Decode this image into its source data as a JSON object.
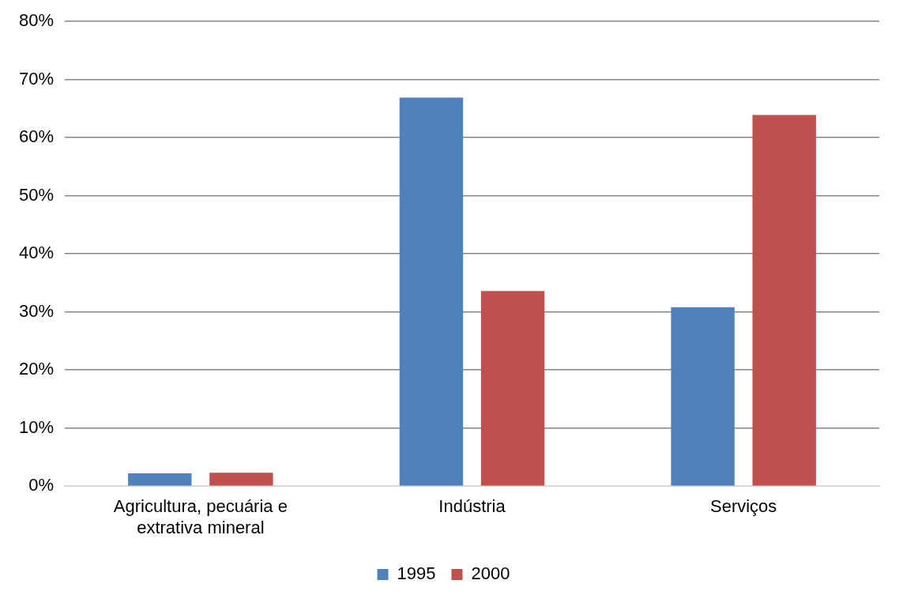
{
  "chart_data": {
    "type": "bar",
    "categories": [
      "Agricultura, pecuária e extrativa mineral",
      "Indústria",
      "Serviços"
    ],
    "series": [
      {
        "name": "1995",
        "color": "#4f81bd",
        "values": [
          2.2,
          66.9,
          30.8
        ]
      },
      {
        "name": "2000",
        "color": "#c0504d",
        "values": [
          2.3,
          33.6,
          63.9
        ]
      }
    ],
    "ylim": [
      0,
      80
    ],
    "yticks": [
      {
        "value": 0,
        "label": "0%"
      },
      {
        "value": 10,
        "label": "10%"
      },
      {
        "value": 20,
        "label": "20%"
      },
      {
        "value": 30,
        "label": "30%"
      },
      {
        "value": 40,
        "label": "40%"
      },
      {
        "value": 50,
        "label": "50%"
      },
      {
        "value": 60,
        "label": "60%"
      },
      {
        "value": 70,
        "label": "70%"
      },
      {
        "value": 80,
        "label": "80%"
      }
    ],
    "grid": "y",
    "legend": "bottom"
  }
}
